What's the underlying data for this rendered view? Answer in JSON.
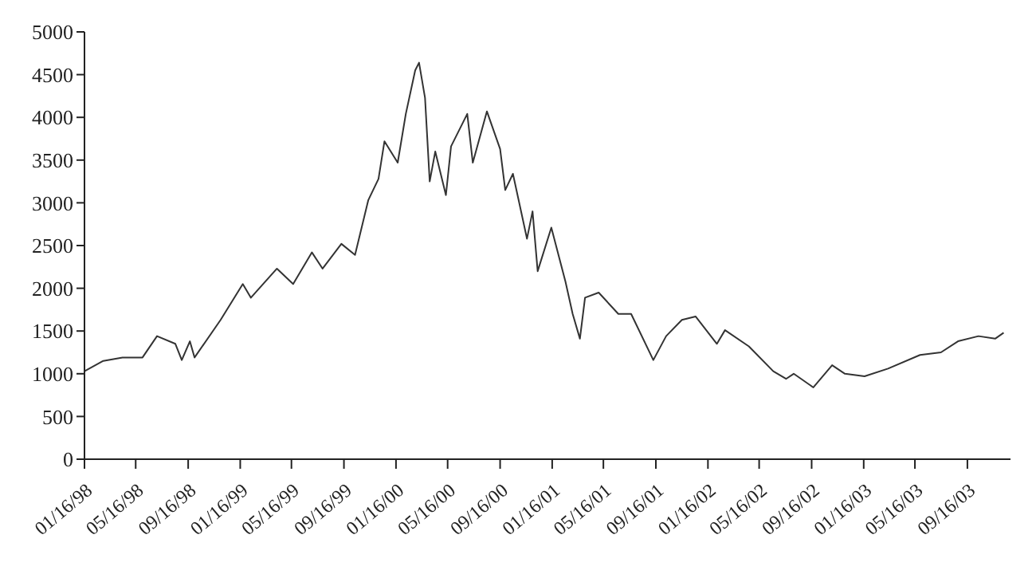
{
  "chart_data": {
    "type": "line",
    "x": [
      "1998-01-16",
      "1998-03-01",
      "1998-04-15",
      "1998-06-01",
      "1998-07-05",
      "1998-08-17",
      "1998-09-01",
      "1998-09-20",
      "1998-10-01",
      "1998-12-01",
      "1999-01-22",
      "1999-02-10",
      "1999-04-12",
      "1999-05-20",
      "1999-07-03",
      "1999-07-28",
      "1999-09-10",
      "1999-10-12",
      "1999-11-12",
      "1999-12-06",
      "1999-12-20",
      "2000-01-20",
      "2000-02-08",
      "2000-03-01",
      "2000-03-10",
      "2000-03-24",
      "2000-04-04",
      "2000-04-17",
      "2000-05-12",
      "2000-05-24",
      "2000-07-01",
      "2000-07-14",
      "2000-08-16",
      "2000-09-16",
      "2000-09-28",
      "2000-10-16",
      "2000-11-18",
      "2000-12-01",
      "2000-12-13",
      "2001-01-14",
      "2001-02-16",
      "2001-03-05",
      "2001-03-22",
      "2001-04-03",
      "2001-05-05",
      "2001-06-20",
      "2001-07-20",
      "2001-09-10",
      "2001-10-10",
      "2001-11-16",
      "2001-12-18",
      "2002-02-06",
      "2002-02-25",
      "2002-04-22",
      "2002-06-18",
      "2002-07-18",
      "2002-08-05",
      "2002-09-20",
      "2002-11-03",
      "2002-12-03",
      "2003-01-18",
      "2003-03-14",
      "2003-05-28",
      "2003-07-16",
      "2003-08-25",
      "2003-10-12",
      "2003-11-20",
      "2003-12-10"
    ],
    "series": [
      {
        "color": "#333333",
        "values": [
          1030,
          1150,
          1190,
          1190,
          1440,
          1350,
          1160,
          1380,
          1190,
          1630,
          2050,
          1890,
          2230,
          2050,
          2420,
          2230,
          2520,
          2390,
          3030,
          3280,
          3720,
          3470,
          4040,
          4550,
          4640,
          4230,
          3250,
          3600,
          3090,
          3660,
          4040,
          3470,
          4070,
          3630,
          3150,
          3340,
          2580,
          2900,
          2200,
          2710,
          2080,
          1700,
          1410,
          1890,
          1950,
          1700,
          1700,
          1160,
          1440,
          1630,
          1670,
          1350,
          1510,
          1320,
          1030,
          940,
          1000,
          840,
          1100,
          1000,
          970,
          1060,
          1220,
          1250,
          1380,
          1440,
          1410,
          1480
        ]
      }
    ],
    "xlim": [
      "1998-01-16",
      "2003-12-26"
    ],
    "xticks": [
      {
        "value": "1998-01-16",
        "label": "01/16/98"
      },
      {
        "value": "1998-05-16",
        "label": "05/16/98"
      },
      {
        "value": "1998-09-16",
        "label": "09/16/98"
      },
      {
        "value": "1999-01-16",
        "label": "01/16/99"
      },
      {
        "value": "1999-05-16",
        "label": "05/16/99"
      },
      {
        "value": "1999-09-16",
        "label": "09/16/99"
      },
      {
        "value": "2000-01-16",
        "label": "01/16/00"
      },
      {
        "value": "2000-05-16",
        "label": "05/16/00"
      },
      {
        "value": "2000-09-16",
        "label": "09/16/00"
      },
      {
        "value": "2001-01-16",
        "label": "01/16/01"
      },
      {
        "value": "2001-05-16",
        "label": "05/16/01"
      },
      {
        "value": "2001-09-16",
        "label": "09/16/01"
      },
      {
        "value": "2002-01-16",
        "label": "01/16/02"
      },
      {
        "value": "2002-05-16",
        "label": "05/16/02"
      },
      {
        "value": "2002-09-16",
        "label": "09/16/02"
      },
      {
        "value": "2003-01-16",
        "label": "01/16/03"
      },
      {
        "value": "2003-05-16",
        "label": "05/16/03"
      },
      {
        "value": "2003-09-16",
        "label": "09/16/03"
      }
    ],
    "ylim": [
      0,
      5000
    ],
    "yticks": [
      0,
      500,
      1000,
      1500,
      2000,
      2500,
      3000,
      3500,
      4000,
      4500,
      5000
    ],
    "grid": false,
    "legend": false,
    "marker": "none",
    "line_style": "solid"
  }
}
